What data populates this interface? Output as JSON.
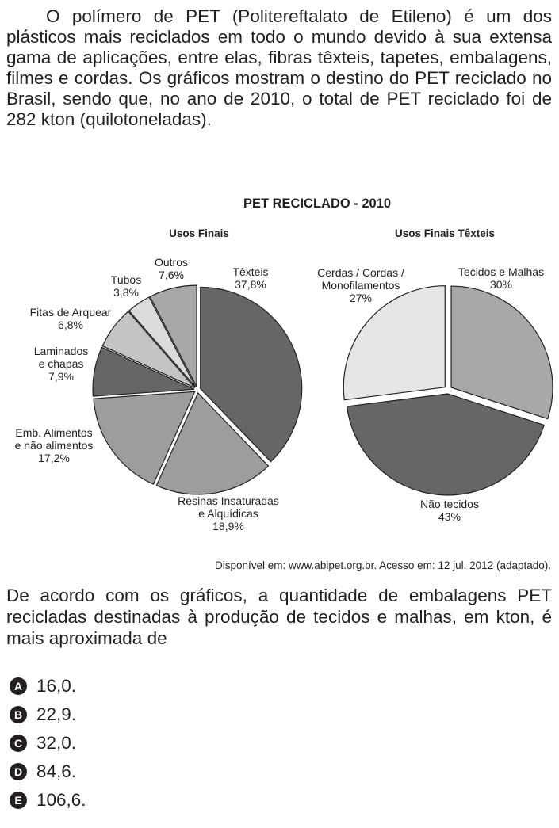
{
  "intro_text": "O polímero de PET (Politereftalato de Etileno) é um dos plásticos mais reciclados em todo o mundo devido à sua extensa gama de aplicações, entre elas, fibras têxteis, tapetes, embalagens, filmes e cordas. Os gráficos mostram o destino do PET reciclado no Brasil, sendo que, no ano de 2010, o total de PET reciclado foi de 282 kton (quilotoneladas).",
  "figure_title": "PET RECICLADO - 2010",
  "chart_data": [
    {
      "type": "pie",
      "title": "Usos Finais",
      "start_angle_deg": 0,
      "slices": [
        {
          "label": [
            "Têxteis"
          ],
          "value_text": "37,8%",
          "value": 37.8,
          "color": "#666666"
        },
        {
          "label": [
            "Resinas Insaturadas",
            "e Alquídicas"
          ],
          "value_text": "18,9%",
          "value": 18.9,
          "color": "#9d9d9d"
        },
        {
          "label": [
            "Emb. Alimentos",
            "e não alimentos"
          ],
          "value_text": "17,2%",
          "value": 17.2,
          "color": "#9d9d9d"
        },
        {
          "label": [
            "Laminados",
            "e chapas"
          ],
          "value_text": "7,9%",
          "value": 7.9,
          "color": "#666666"
        },
        {
          "label": [
            "Fitas de Arquear"
          ],
          "value_text": "6,8%",
          "value": 6.8,
          "color": "#c4c4c4"
        },
        {
          "label": [
            "Tubos"
          ],
          "value_text": "3,8%",
          "value": 3.8,
          "color": "#dcdcdc"
        },
        {
          "label": [
            "Outros"
          ],
          "value_text": "7,6%",
          "value": 7.6,
          "color": "#a8a8a8"
        }
      ]
    },
    {
      "type": "pie",
      "title": "Usos Finais Têxteis",
      "start_angle_deg": 0,
      "slices": [
        {
          "label": [
            "Tecidos e Malhas"
          ],
          "value_text": "30%",
          "value": 30,
          "color": "#a8a8a8"
        },
        {
          "label": [
            "Não tecidos"
          ],
          "value_text": "43%",
          "value": 43,
          "color": "#666666"
        },
        {
          "label": [
            "Cerdas / Cordas /",
            "Monofilamentos"
          ],
          "value_text": "27%",
          "value": 27,
          "color": "#e6e6e6"
        }
      ]
    }
  ],
  "source": "Disponível em: www.abipet.org.br. Acesso em: 12 jul. 2012 (adaptado).",
  "question_text": "De acordo com os gráficos, a quantidade de embalagens PET recicladas destinadas à produção de tecidos e malhas, em kton, é mais aproximada de",
  "options": [
    {
      "letter": "A",
      "text": "16,0."
    },
    {
      "letter": "B",
      "text": "22,9."
    },
    {
      "letter": "C",
      "text": "32,0."
    },
    {
      "letter": "D",
      "text": "84,6."
    },
    {
      "letter": "E",
      "text": "106,6."
    }
  ]
}
